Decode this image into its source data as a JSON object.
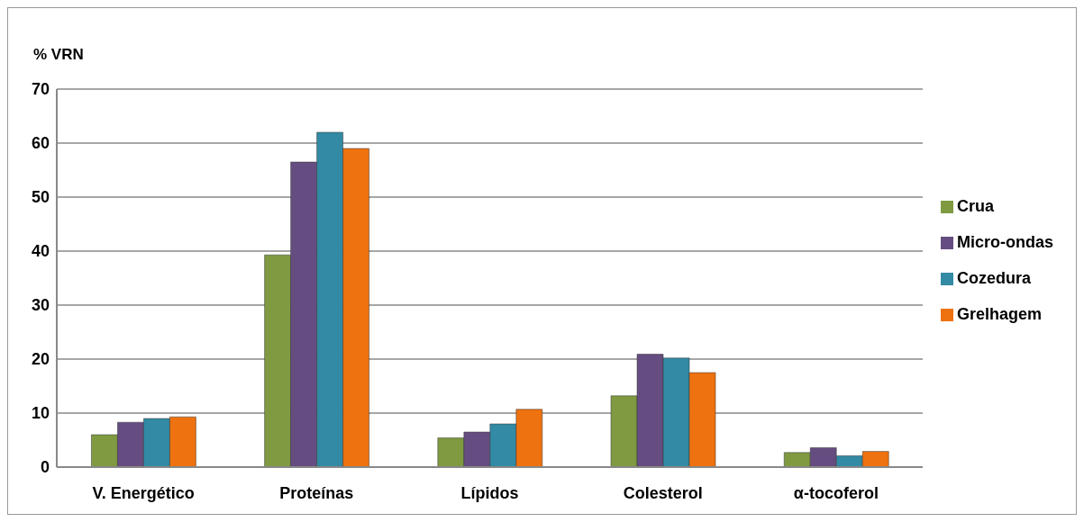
{
  "chart_data": {
    "type": "bar",
    "ylabel": "% VRN",
    "categories": [
      "V. Energético",
      "Proteínas",
      "Lípidos",
      "Colesterol",
      "α-tocoferol"
    ],
    "series": [
      {
        "name": "Crua",
        "color": "#7f9a41",
        "values": [
          6,
          39.3,
          5.4,
          13.2,
          2.7
        ]
      },
      {
        "name": "Micro-ondas",
        "color": "#664d81",
        "values": [
          8.3,
          56.5,
          6.5,
          20.9,
          3.6
        ]
      },
      {
        "name": "Cozedura",
        "color": "#328aa4",
        "values": [
          9,
          62,
          8,
          20.2,
          2.1
        ]
      },
      {
        "name": "Grelhagem",
        "color": "#ee720f",
        "values": [
          9.3,
          59,
          10.7,
          17.5,
          2.9
        ]
      }
    ],
    "ylim": [
      0,
      70
    ],
    "yticks": [
      0,
      10,
      20,
      30,
      40,
      50,
      60,
      70
    ],
    "grid": "y",
    "legend": "right"
  }
}
